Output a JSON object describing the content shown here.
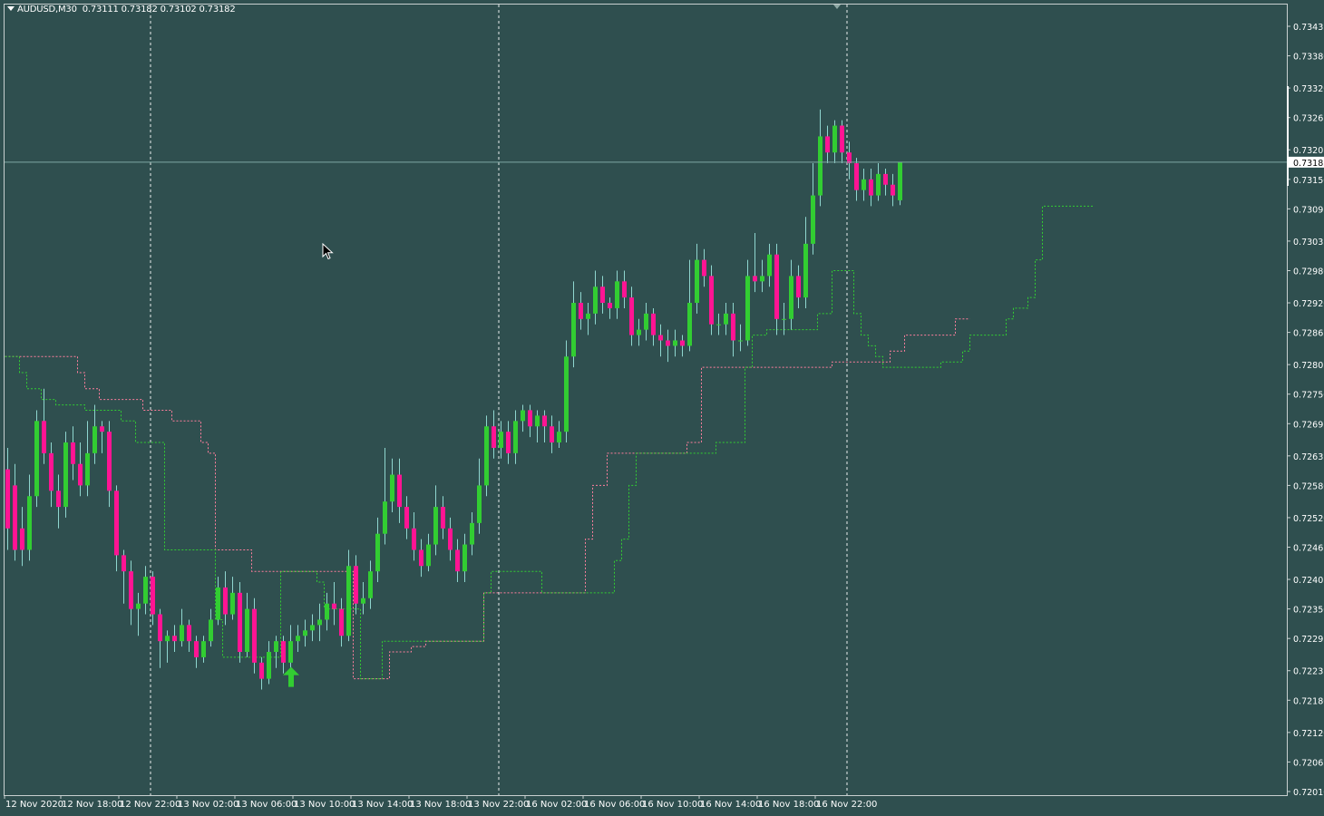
{
  "header": {
    "symbol": "AUDUSD,M30",
    "ohlc": "0.73111 0.73182 0.73102 0.73182"
  },
  "colors": {
    "background": "#2f4f4f",
    "bull": "#32cd32",
    "bear": "#ff1493",
    "wick": "#8fd6cf",
    "channel_upper": "#ff7f9e",
    "channel_lower": "#32cd32",
    "grid": "#ffffff",
    "bid_line": "#7fa7a3"
  },
  "chart_data": {
    "type": "candlestick",
    "symbol": "AUDUSD",
    "timeframe": "M30",
    "current_price": "0.73182",
    "ylim": [
      0.7201,
      0.7346
    ],
    "y_ticks": [
      "0.73435",
      "0.73380",
      "0.73320",
      "0.73265",
      "0.73205",
      "0.73150",
      "0.73095",
      "0.73035",
      "0.72980",
      "0.72920",
      "0.72865",
      "0.72805",
      "0.72750",
      "0.72695",
      "0.72635",
      "0.72580",
      "0.72520",
      "0.72465",
      "0.72405",
      "0.72350",
      "0.72295",
      "0.72235",
      "0.72180",
      "0.72120",
      "0.72065",
      "0.72010"
    ],
    "x_ticks": [
      "12 Nov 2020",
      "12 Nov 18:00",
      "12 Nov 22:00",
      "13 Nov 02:00",
      "13 Nov 06:00",
      "13 Nov 10:00",
      "13 Nov 14:00",
      "13 Nov 18:00",
      "13 Nov 22:00",
      "16 Nov 02:00",
      "16 Nov 06:00",
      "16 Nov 10:00",
      "16 Nov 14:00",
      "16 Nov 18:00",
      "16 Nov 22:00"
    ],
    "day_separators": [
      "12 Nov 22:00",
      "13 Nov 22:00",
      "16 Nov 22:00"
    ],
    "bar_step_bars": 8,
    "candles": [
      [
        0.7261,
        0.725,
        0.7265,
        0.7246
      ],
      [
        0.7258,
        0.7246,
        0.7262,
        0.7244
      ],
      [
        0.725,
        0.7246,
        0.7254,
        0.7243
      ],
      [
        0.7246,
        0.7256,
        0.726,
        0.7244
      ],
      [
        0.7256,
        0.727,
        0.7272,
        0.7254
      ],
      [
        0.727,
        0.7264,
        0.7276,
        0.7262
      ],
      [
        0.7264,
        0.7257,
        0.7266,
        0.7254
      ],
      [
        0.7257,
        0.7254,
        0.726,
        0.725
      ],
      [
        0.7254,
        0.7266,
        0.7268,
        0.7252
      ],
      [
        0.7266,
        0.7262,
        0.7269,
        0.7259
      ],
      [
        0.7262,
        0.7258,
        0.7266,
        0.7256
      ],
      [
        0.7258,
        0.7264,
        0.727,
        0.7256
      ],
      [
        0.7264,
        0.7269,
        0.7273,
        0.7262
      ],
      [
        0.7269,
        0.7268,
        0.727,
        0.7264
      ],
      [
        0.7268,
        0.7257,
        0.727,
        0.7254
      ],
      [
        0.7257,
        0.7245,
        0.7258,
        0.7242
      ],
      [
        0.7245,
        0.7242,
        0.7246,
        0.7236
      ],
      [
        0.7242,
        0.7235,
        0.7244,
        0.7232
      ],
      [
        0.7235,
        0.7236,
        0.7238,
        0.723
      ],
      [
        0.7236,
        0.7241,
        0.7243,
        0.7234
      ],
      [
        0.7241,
        0.7234,
        0.7242,
        0.7232
      ],
      [
        0.7234,
        0.7229,
        0.7235,
        0.7224
      ],
      [
        0.7229,
        0.723,
        0.7231,
        0.7225
      ],
      [
        0.723,
        0.7229,
        0.7232,
        0.7227
      ],
      [
        0.7229,
        0.7232,
        0.7235,
        0.7228
      ],
      [
        0.7232,
        0.7229,
        0.7233,
        0.7227
      ],
      [
        0.7229,
        0.7226,
        0.723,
        0.7224
      ],
      [
        0.7226,
        0.7229,
        0.723,
        0.7225
      ],
      [
        0.7229,
        0.7233,
        0.7235,
        0.7228
      ],
      [
        0.7233,
        0.7239,
        0.7241,
        0.7232
      ],
      [
        0.7239,
        0.7234,
        0.7242,
        0.7232
      ],
      [
        0.7234,
        0.7238,
        0.7241,
        0.7233
      ],
      [
        0.7238,
        0.7227,
        0.724,
        0.7225
      ],
      [
        0.7227,
        0.7235,
        0.7238,
        0.7226
      ],
      [
        0.7235,
        0.7225,
        0.7237,
        0.7223
      ],
      [
        0.7225,
        0.7222,
        0.7226,
        0.722
      ],
      [
        0.7222,
        0.7227,
        0.7229,
        0.7221
      ],
      [
        0.7227,
        0.7229,
        0.723,
        0.7224
      ],
      [
        0.7229,
        0.7225,
        0.723,
        0.7223
      ],
      [
        0.7225,
        0.7229,
        0.7232,
        0.7224
      ],
      [
        0.7229,
        0.723,
        0.7232,
        0.7227
      ],
      [
        0.723,
        0.7231,
        0.7233,
        0.7228
      ],
      [
        0.7231,
        0.7232,
        0.7234,
        0.7229
      ],
      [
        0.7232,
        0.7233,
        0.7236,
        0.7229
      ],
      [
        0.7233,
        0.7236,
        0.7238,
        0.7231
      ],
      [
        0.7236,
        0.7235,
        0.724,
        0.7232
      ],
      [
        0.7235,
        0.723,
        0.7237,
        0.7228
      ],
      [
        0.723,
        0.7243,
        0.7246,
        0.7229
      ],
      [
        0.7243,
        0.7236,
        0.7245,
        0.7234
      ],
      [
        0.7236,
        0.7237,
        0.724,
        0.7234
      ],
      [
        0.7237,
        0.7242,
        0.7244,
        0.7235
      ],
      [
        0.7242,
        0.7249,
        0.7252,
        0.724
      ],
      [
        0.7249,
        0.7255,
        0.7265,
        0.7247
      ],
      [
        0.7255,
        0.726,
        0.7263,
        0.7253
      ],
      [
        0.726,
        0.7254,
        0.7263,
        0.7251
      ],
      [
        0.7254,
        0.725,
        0.7256,
        0.7248
      ],
      [
        0.725,
        0.7246,
        0.7253,
        0.7244
      ],
      [
        0.7246,
        0.7243,
        0.7248,
        0.7241
      ],
      [
        0.7243,
        0.7247,
        0.7249,
        0.7242
      ],
      [
        0.7247,
        0.7254,
        0.7258,
        0.7245
      ],
      [
        0.7254,
        0.725,
        0.7256,
        0.7248
      ],
      [
        0.725,
        0.7246,
        0.7252,
        0.7244
      ],
      [
        0.7246,
        0.7242,
        0.7248,
        0.724
      ],
      [
        0.7242,
        0.7247,
        0.7249,
        0.724
      ],
      [
        0.7247,
        0.7251,
        0.7253,
        0.7245
      ],
      [
        0.7251,
        0.7258,
        0.7263,
        0.7249
      ],
      [
        0.7258,
        0.7269,
        0.7271,
        0.7256
      ],
      [
        0.7269,
        0.7265,
        0.7272,
        0.7263
      ],
      [
        0.7265,
        0.7268,
        0.727,
        0.7263
      ],
      [
        0.7268,
        0.7264,
        0.727,
        0.7262
      ],
      [
        0.7264,
        0.727,
        0.7272,
        0.7262
      ],
      [
        0.727,
        0.7272,
        0.7273,
        0.7268
      ],
      [
        0.7272,
        0.7269,
        0.7273,
        0.7267
      ],
      [
        0.7269,
        0.7271,
        0.7272,
        0.7266
      ],
      [
        0.7271,
        0.7269,
        0.7272,
        0.7266
      ],
      [
        0.7269,
        0.7266,
        0.7271,
        0.7264
      ],
      [
        0.7266,
        0.7268,
        0.727,
        0.7265
      ],
      [
        0.7268,
        0.7282,
        0.7285,
        0.7266
      ],
      [
        0.7282,
        0.7292,
        0.7296,
        0.728
      ],
      [
        0.7292,
        0.7289,
        0.7294,
        0.7287
      ],
      [
        0.7289,
        0.729,
        0.7292,
        0.7286
      ],
      [
        0.729,
        0.7295,
        0.7298,
        0.7288
      ],
      [
        0.7295,
        0.7292,
        0.7297,
        0.729
      ],
      [
        0.7292,
        0.7291,
        0.7293,
        0.7289
      ],
      [
        0.7291,
        0.7296,
        0.7298,
        0.7289
      ],
      [
        0.7296,
        0.7293,
        0.7298,
        0.7291
      ],
      [
        0.7293,
        0.7286,
        0.7295,
        0.7284
      ],
      [
        0.7286,
        0.7287,
        0.7289,
        0.7284
      ],
      [
        0.7287,
        0.729,
        0.7292,
        0.7285
      ],
      [
        0.729,
        0.7286,
        0.7291,
        0.7284
      ],
      [
        0.7286,
        0.7285,
        0.7288,
        0.7282
      ],
      [
        0.7285,
        0.7284,
        0.7287,
        0.7281
      ],
      [
        0.7284,
        0.7285,
        0.7287,
        0.7282
      ],
      [
        0.7285,
        0.7284,
        0.7286,
        0.7282
      ],
      [
        0.7284,
        0.7292,
        0.73,
        0.7283
      ],
      [
        0.7292,
        0.73,
        0.7303,
        0.729
      ],
      [
        0.73,
        0.7297,
        0.7302,
        0.7295
      ],
      [
        0.7297,
        0.7288,
        0.7299,
        0.7286
      ],
      [
        0.7288,
        0.7288,
        0.729,
        0.7286
      ],
      [
        0.7288,
        0.729,
        0.7292,
        0.7286
      ],
      [
        0.729,
        0.7285,
        0.7292,
        0.7282
      ],
      [
        0.7285,
        0.7285,
        0.7288,
        0.7283
      ],
      [
        0.7285,
        0.7297,
        0.73,
        0.7284
      ],
      [
        0.7297,
        0.7296,
        0.7305,
        0.7294
      ],
      [
        0.7296,
        0.7297,
        0.73,
        0.7294
      ],
      [
        0.7297,
        0.7301,
        0.7303,
        0.7295
      ],
      [
        0.7301,
        0.7289,
        0.7303,
        0.7286
      ],
      [
        0.7289,
        0.7289,
        0.7292,
        0.7286
      ],
      [
        0.7289,
        0.7297,
        0.73,
        0.7287
      ],
      [
        0.7297,
        0.7293,
        0.7299,
        0.7291
      ],
      [
        0.7293,
        0.7303,
        0.7308,
        0.7291
      ],
      [
        0.7303,
        0.7312,
        0.7318,
        0.7301
      ],
      [
        0.7312,
        0.7323,
        0.7328,
        0.731
      ],
      [
        0.7323,
        0.732,
        0.7325,
        0.7318
      ],
      [
        0.732,
        0.7325,
        0.7326,
        0.7318
      ],
      [
        0.7325,
        0.732,
        0.7326,
        0.7318
      ],
      [
        0.732,
        0.7318,
        0.7322,
        0.7315
      ],
      [
        0.7318,
        0.7313,
        0.7319,
        0.7311
      ],
      [
        0.7313,
        0.7315,
        0.7317,
        0.7311
      ],
      [
        0.7315,
        0.7312,
        0.7317,
        0.731
      ],
      [
        0.7312,
        0.7316,
        0.7318,
        0.7311
      ],
      [
        0.7316,
        0.7314,
        0.7317,
        0.7312
      ],
      [
        0.7314,
        0.7312,
        0.7316,
        0.731
      ],
      [
        0.73111,
        0.73182,
        0.73182,
        0.73102
      ]
    ],
    "upper_channel": [
      0.7282,
      0.7282,
      0.7282,
      0.7282,
      0.7282,
      0.7282,
      0.7282,
      0.7282,
      0.7282,
      0.7282,
      0.7279,
      0.7276,
      0.7276,
      0.7274,
      0.7274,
      0.7274,
      0.7274,
      0.7274,
      0.7274,
      0.7272,
      0.7272,
      0.7272,
      0.7272,
      0.727,
      0.727,
      0.727,
      0.727,
      0.7266,
      0.7264,
      0.7246,
      0.7246,
      0.7246,
      0.7246,
      0.7246,
      0.7242,
      0.7242,
      0.7242,
      0.7242,
      0.7242,
      0.7242,
      0.7242,
      0.7242,
      0.7242,
      0.7242,
      0.7242,
      0.7242,
      0.7242,
      0.7242,
      0.7222,
      0.7222,
      0.7222,
      0.7222,
      0.7222,
      0.7227,
      0.7227,
      0.7227,
      0.7228,
      0.7228,
      0.7229,
      0.7229,
      0.7229,
      0.7229,
      0.7229,
      0.7229,
      0.7229,
      0.7229,
      0.7238,
      0.7238,
      0.7238,
      0.7238,
      0.7238,
      0.7238,
      0.7238,
      0.7238,
      0.7238,
      0.7238,
      0.7238,
      0.7238,
      0.7238,
      0.7238,
      0.7248,
      0.7258,
      0.7258,
      0.7264,
      0.7264,
      0.7264,
      0.7264,
      0.7264,
      0.7264,
      0.7264,
      0.7264,
      0.7264,
      0.7264,
      0.7264,
      0.7266,
      0.7266,
      0.728,
      0.728,
      0.728,
      0.728,
      0.728,
      0.728,
      0.728,
      0.728,
      0.728,
      0.728,
      0.728,
      0.728,
      0.728,
      0.728,
      0.728,
      0.728,
      0.728,
      0.728,
      0.7281,
      0.7281,
      0.7281,
      0.7281,
      0.7281,
      0.7281,
      0.7281,
      0.7281,
      0.7283,
      0.7283,
      0.7286,
      0.7286,
      0.7286,
      0.7286,
      0.7286,
      0.7286,
      0.7286,
      0.7289,
      0.7289
    ],
    "lower_channel": [
      0.7282,
      0.7282,
      0.7279,
      0.7276,
      0.7276,
      0.7274,
      0.7274,
      0.7273,
      0.7273,
      0.7273,
      0.7273,
      0.7272,
      0.7272,
      0.7272,
      0.7272,
      0.7272,
      0.727,
      0.727,
      0.7266,
      0.7266,
      0.7266,
      0.7266,
      0.7246,
      0.7246,
      0.7246,
      0.7246,
      0.7246,
      0.7246,
      0.7246,
      0.7233,
      0.7226,
      0.7226,
      0.7226,
      0.7226,
      0.7226,
      0.7226,
      0.7226,
      0.7226,
      0.7242,
      0.7242,
      0.7242,
      0.7242,
      0.7242,
      0.724,
      0.7235,
      0.7235,
      0.7235,
      0.7235,
      0.7235,
      0.7222,
      0.7222,
      0.7222,
      0.7229,
      0.7229,
      0.7229,
      0.7229,
      0.7229,
      0.7229,
      0.7229,
      0.7229,
      0.7229,
      0.7229,
      0.7229,
      0.7229,
      0.7229,
      0.7229,
      0.7238,
      0.7242,
      0.7242,
      0.7242,
      0.7242,
      0.7242,
      0.7242,
      0.7242,
      0.7238,
      0.7238,
      0.7238,
      0.7238,
      0.7238,
      0.7238,
      0.7238,
      0.7238,
      0.7238,
      0.7238,
      0.7244,
      0.7248,
      0.7258,
      0.7264,
      0.7264,
      0.7264,
      0.7264,
      0.7264,
      0.7264,
      0.7264,
      0.7264,
      0.7264,
      0.7264,
      0.7264,
      0.7266,
      0.7266,
      0.7266,
      0.7266,
      0.728,
      0.7286,
      0.7286,
      0.7287,
      0.7287,
      0.7287,
      0.7287,
      0.7287,
      0.7287,
      0.7287,
      0.729,
      0.729,
      0.7298,
      0.7298,
      0.7298,
      0.729,
      0.7286,
      0.7284,
      0.7282,
      0.728,
      0.728,
      0.728,
      0.728,
      0.728,
      0.728,
      0.728,
      0.728,
      0.7281,
      0.7281,
      0.7281,
      0.7283,
      0.7286,
      0.7286,
      0.7286,
      0.7286,
      0.7286,
      0.7289,
      0.7291,
      0.7291,
      0.7293,
      0.73,
      0.731,
      0.731,
      0.731,
      0.731,
      0.731,
      0.731,
      0.731
    ],
    "signals": [
      {
        "type": "buy-arrow",
        "bar": 39,
        "price": 0.72225
      }
    ]
  }
}
